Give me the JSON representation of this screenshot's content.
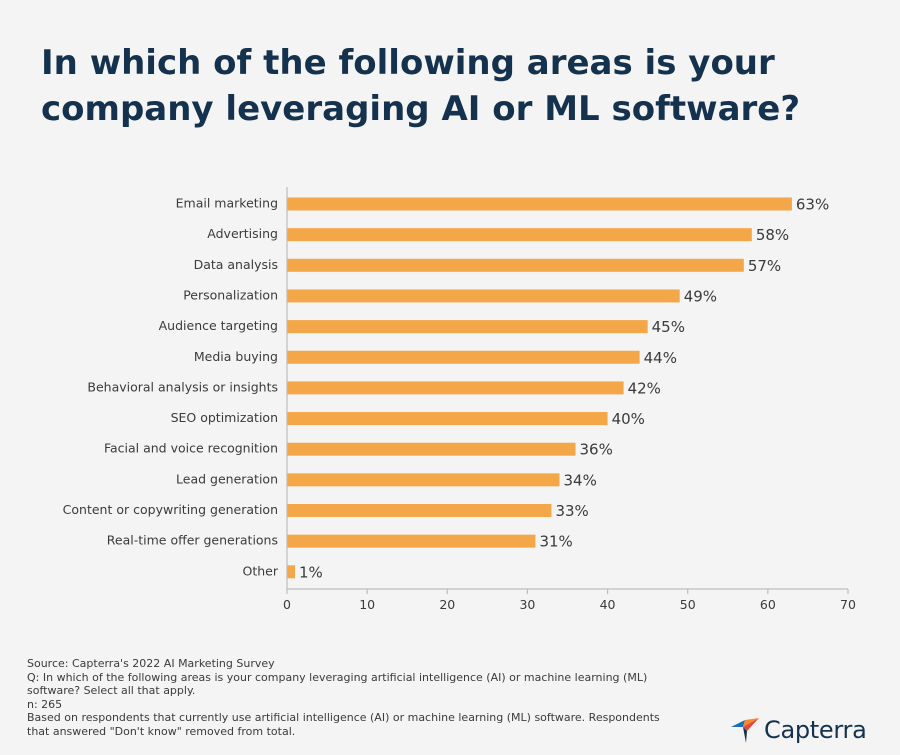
{
  "title": "In which of the following areas is your company leveraging AI or ML software?",
  "colors": {
    "bar": "#f4a748",
    "title": "#14324d",
    "axis": "#bdbdbd",
    "text": "#3b3b3b",
    "logo_blue": "#1a70b8",
    "logo_orange": "#f48a2e",
    "logo_red": "#e2483d",
    "logo_navy": "#14324d"
  },
  "chart_data": {
    "type": "bar",
    "orientation": "horizontal",
    "categories": [
      "Email marketing",
      "Advertising",
      "Data analysis",
      "Personalization",
      "Audience targeting",
      "Media buying",
      "Behavioral analysis or insights",
      "SEO optimization",
      "Facial and voice recognition",
      "Lead generation",
      "Content or copywriting generation",
      "Real-time offer generations",
      "Other"
    ],
    "values": [
      63,
      58,
      57,
      49,
      45,
      44,
      42,
      40,
      36,
      34,
      33,
      31,
      1
    ],
    "value_labels": [
      "63%",
      "58%",
      "57%",
      "49%",
      "45%",
      "44%",
      "42%",
      "40%",
      "36%",
      "34%",
      "33%",
      "31%",
      "1%"
    ],
    "xlim": [
      0,
      70
    ],
    "xticks": [
      0,
      10,
      20,
      30,
      40,
      50,
      60,
      70
    ],
    "grid": false,
    "legend": "none"
  },
  "footer": {
    "source": "Source: Capterra's 2022 AI Marketing Survey",
    "question_line1": "Q: In which of the following areas is your company leveraging artificial intelligence (AI) or machine learning (ML)",
    "question_line2": "software? Select all that apply.",
    "n": "n: 265",
    "note_line1": "Based on respondents that currently use artificial intelligence (AI) or machine learning (ML) software. Respondents",
    "note_line2": "that answered \"Don't know\" removed from total."
  },
  "logo": {
    "text": "Capterra",
    "icon": "capterra-arrow-icon"
  }
}
